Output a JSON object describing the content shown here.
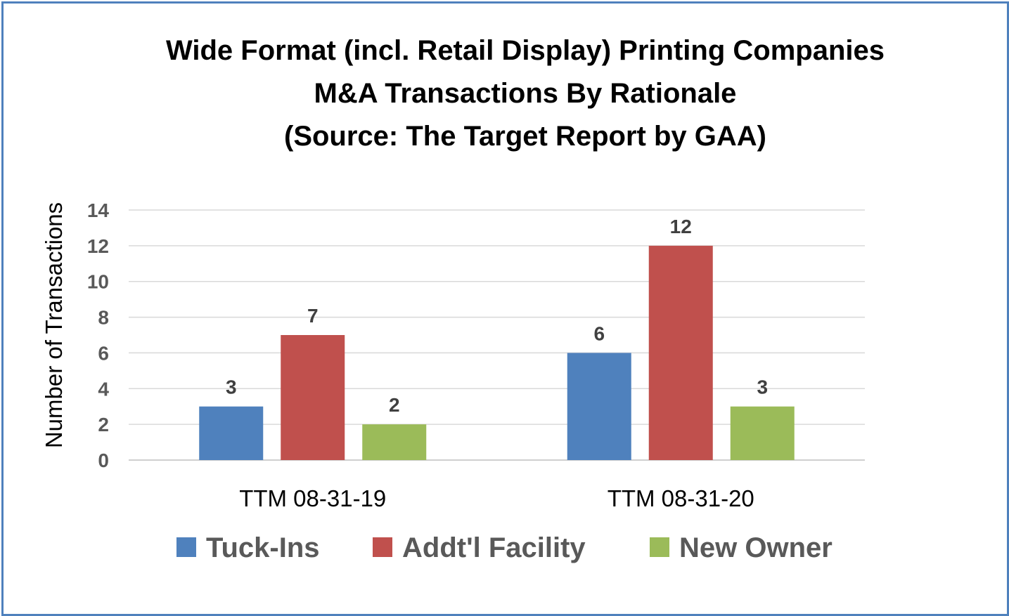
{
  "chart_data": {
    "type": "bar",
    "title_lines": [
      "Wide Format (incl. Retail Display) Printing Companies",
      "M&A Transactions By Rationale",
      "(Source: The Target Report by GAA)"
    ],
    "ylabel": "Number of Transactions",
    "xlabel": "",
    "ylim": [
      0,
      14
    ],
    "yticks": [
      "0",
      "2",
      "4",
      "6",
      "8",
      "10",
      "12",
      "14"
    ],
    "categories": [
      "TTM 08-31-19",
      "TTM 08-31-20"
    ],
    "series": [
      {
        "name": "Tuck-Ins",
        "values": [
          3,
          6
        ],
        "color": "#4f81bd"
      },
      {
        "name": "Addt'l Facility",
        "values": [
          7,
          12
        ],
        "color": "#c0504d"
      },
      {
        "name": "New Owner",
        "values": [
          2,
          3
        ],
        "color": "#9bbb59"
      }
    ],
    "data_labels": true,
    "grid": true,
    "legend_position": "bottom"
  }
}
